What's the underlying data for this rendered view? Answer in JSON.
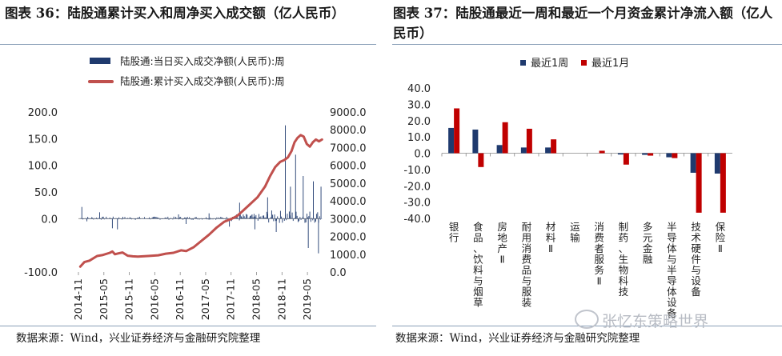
{
  "left_panel": {
    "title": "图表 36：陆股通累计买入和周净买入成交额（亿人民币）",
    "source": "数据来源：Wind，兴业证券经济与金融研究院整理"
  },
  "right_panel": {
    "title": "图表 37：陆股通最近一周和最近一个月资金累计净流入额（亿人民币）",
    "source": "数据来源：Wind，兴业证券经济与金融研究院整理"
  },
  "watermark": "张忆东策略世界",
  "chart_data": [
    {
      "type": "bar+line",
      "title": "陆股通累计买入和周净买入成交额（亿人民币）",
      "series": [
        {
          "name": "陆股通:当日买入成交净额(人民币):周",
          "type": "bar",
          "axis": "left",
          "color": "#1f3a6e"
        },
        {
          "name": "陆股通:累计买入成交净额(人民币):周",
          "type": "line",
          "axis": "right",
          "color": "#c0504d"
        }
      ],
      "x_range": [
        "2014-11",
        "2019-08"
      ],
      "x_ticks": [
        "2014-11",
        "2015-05",
        "2015-11",
        "2016-05",
        "2016-11",
        "2017-05",
        "2017-11",
        "2018-05",
        "2018-11",
        "2019-05"
      ],
      "y_left": {
        "min": -100,
        "max": 200,
        "ticks": [
          "-100.0",
          "0.0",
          "50.0",
          "100.0",
          "150.0",
          "200.0"
        ],
        "tick_values": [
          -100,
          0,
          50,
          100,
          150,
          200
        ]
      },
      "y_right": {
        "min": 0,
        "max": 9000,
        "ticks": [
          "0.0",
          "1000.0",
          "2000.0",
          "3000.0",
          "4000.0",
          "5000.0",
          "6000.0",
          "7000.0",
          "8000.0",
          "9000.0"
        ],
        "tick_values": [
          0,
          1000,
          2000,
          3000,
          4000,
          5000,
          6000,
          7000,
          8000,
          9000
        ]
      },
      "cumulative_line": [
        [
          2014.87,
          300
        ],
        [
          2014.95,
          560
        ],
        [
          2015.05,
          640
        ],
        [
          2015.2,
          900
        ],
        [
          2015.3,
          950
        ],
        [
          2015.45,
          1080
        ],
        [
          2015.5,
          1150
        ],
        [
          2015.55,
          1000
        ],
        [
          2015.62,
          1050
        ],
        [
          2015.7,
          1100
        ],
        [
          2015.8,
          920
        ],
        [
          2015.9,
          880
        ],
        [
          2016.0,
          870
        ],
        [
          2016.2,
          900
        ],
        [
          2016.4,
          940
        ],
        [
          2016.55,
          1030
        ],
        [
          2016.7,
          1080
        ],
        [
          2016.85,
          1220
        ],
        [
          2016.95,
          1180
        ],
        [
          2017.1,
          1400
        ],
        [
          2017.25,
          1750
        ],
        [
          2017.4,
          2100
        ],
        [
          2017.55,
          2500
        ],
        [
          2017.7,
          2830
        ],
        [
          2017.85,
          3000
        ],
        [
          2017.95,
          3150
        ],
        [
          2018.05,
          3400
        ],
        [
          2018.2,
          3800
        ],
        [
          2018.35,
          4200
        ],
        [
          2018.5,
          4800
        ],
        [
          2018.6,
          5400
        ],
        [
          2018.7,
          5900
        ],
        [
          2018.8,
          6200
        ],
        [
          2018.88,
          6300
        ],
        [
          2018.95,
          6450
        ],
        [
          2019.02,
          6800
        ],
        [
          2019.08,
          7300
        ],
        [
          2019.14,
          7550
        ],
        [
          2019.2,
          7700
        ],
        [
          2019.26,
          7620
        ],
        [
          2019.32,
          7200
        ],
        [
          2019.38,
          7050
        ],
        [
          2019.44,
          7300
        ],
        [
          2019.5,
          7450
        ],
        [
          2019.56,
          7350
        ],
        [
          2019.62,
          7450
        ]
      ],
      "weekly_bars_anchor": [
        [
          2014.9,
          22
        ],
        [
          2015.0,
          -5
        ],
        [
          2015.25,
          12
        ],
        [
          2015.5,
          -18
        ],
        [
          2015.6,
          -20
        ],
        [
          2016.8,
          8
        ],
        [
          2016.95,
          -10
        ],
        [
          2017.4,
          10
        ],
        [
          2017.8,
          -15
        ],
        [
          2018.0,
          30
        ],
        [
          2018.3,
          -20
        ],
        [
          2018.55,
          40
        ],
        [
          2018.72,
          -25
        ],
        [
          2018.9,
          175
        ],
        [
          2019.0,
          60
        ],
        [
          2019.1,
          120
        ],
        [
          2019.25,
          80
        ],
        [
          2019.35,
          -55
        ],
        [
          2019.45,
          70
        ],
        [
          2019.55,
          -65
        ],
        [
          2019.6,
          60
        ]
      ]
    },
    {
      "type": "bar",
      "title": "陆股通最近一周和最近一个月资金累计净流入额（亿人民币）",
      "categories": [
        "银行",
        "食品、饮料与烟草",
        "房地产Ⅱ",
        "耐用消费品与服装",
        "材料Ⅱ",
        "运输",
        "消费者服务Ⅱ",
        "制药、生物科技",
        "多元金融",
        "半导体与半导体设备",
        "技术硬件与设备",
        "保险Ⅱ"
      ],
      "series": [
        {
          "name": "最近1周",
          "color": "#1f3a6e",
          "values": [
            15.5,
            14.5,
            5.0,
            3.5,
            3.5,
            0.0,
            0.0,
            -0.8,
            -1.0,
            -2.5,
            -12.0,
            -12.5
          ]
        },
        {
          "name": "最近1月",
          "color": "#c00000",
          "values": [
            27.5,
            -8.5,
            19.0,
            15.0,
            8.5,
            0.0,
            1.5,
            -7.0,
            -1.5,
            -3.0,
            -36.5,
            -36.5
          ]
        }
      ],
      "ylim": [
        -40,
        40
      ],
      "y_ticks": [
        "-40.0",
        "-30.0",
        "-20.0",
        "-10.0",
        "0.0",
        "10.0",
        "20.0",
        "30.0",
        "40.0"
      ],
      "y_tick_values": [
        -40,
        -30,
        -20,
        -10,
        0,
        10,
        20,
        30,
        40
      ]
    }
  ]
}
